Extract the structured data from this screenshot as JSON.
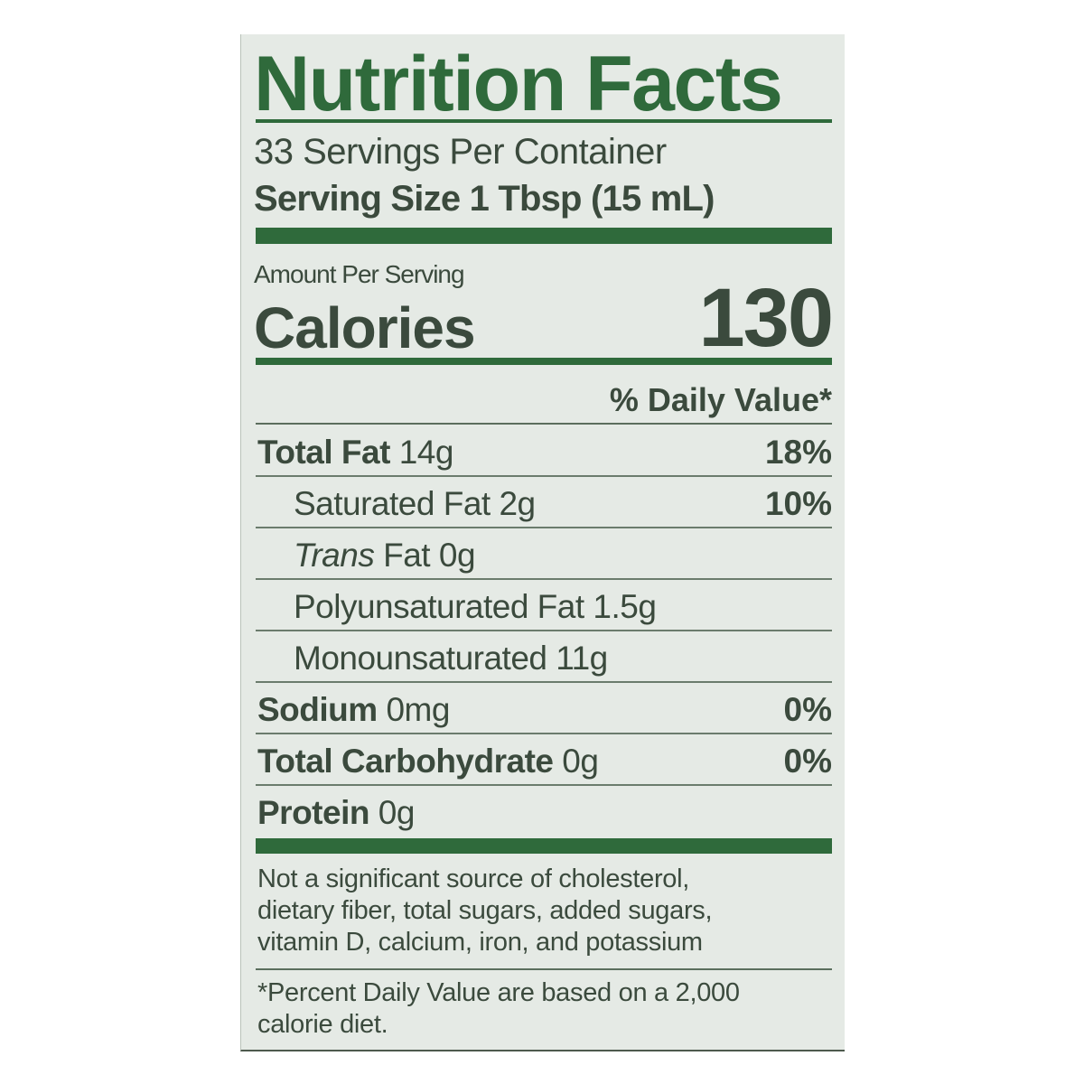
{
  "label": {
    "title": "Nutrition Facts",
    "servings_per_container": "33 Servings Per Container",
    "serving_size": "Serving Size 1 Tbsp (15 mL)",
    "amount_per_serving": "Amount Per Serving",
    "calories_label": "Calories",
    "calories_value": "130",
    "daily_value_header": "% Daily Value*",
    "nutrients": [
      {
        "name": "Total Fat",
        "amount": "14g",
        "dv": "18%",
        "bold": true,
        "indent": false
      },
      {
        "name": "Saturated Fat",
        "amount": "2g",
        "dv": "10%",
        "bold": false,
        "indent": true
      },
      {
        "name": "Trans",
        "name_suffix": " Fat",
        "amount": "0g",
        "dv": "",
        "bold": false,
        "indent": true,
        "italic": true
      },
      {
        "name": "Polyunsaturated Fat",
        "amount": "1.5g",
        "dv": "",
        "bold": false,
        "indent": true
      },
      {
        "name": "Monounsaturated",
        "amount": "11g",
        "dv": "",
        "bold": false,
        "indent": true
      },
      {
        "name": "Sodium",
        "amount": "0mg",
        "dv": "0%",
        "bold": true,
        "indent": false
      },
      {
        "name": "Total Carbohydrate",
        "amount": "0g",
        "dv": "0%",
        "bold": true,
        "indent": false
      },
      {
        "name": "Protein",
        "amount": "0g",
        "dv": "",
        "bold": true,
        "indent": false
      }
    ],
    "footnote_lines": [
      "Not a significant source of cholesterol,",
      "dietary fiber, total sugars, added sugars,",
      "vitamin D, calcium, iron, and potassium"
    ],
    "dv_note_lines": [
      "*Percent Daily Value are based on a 2,000",
      "calorie diet."
    ]
  },
  "colors": {
    "ink_green": "#2f6a3b",
    "text": "#3b4a3d",
    "background": "#e5eae5"
  }
}
